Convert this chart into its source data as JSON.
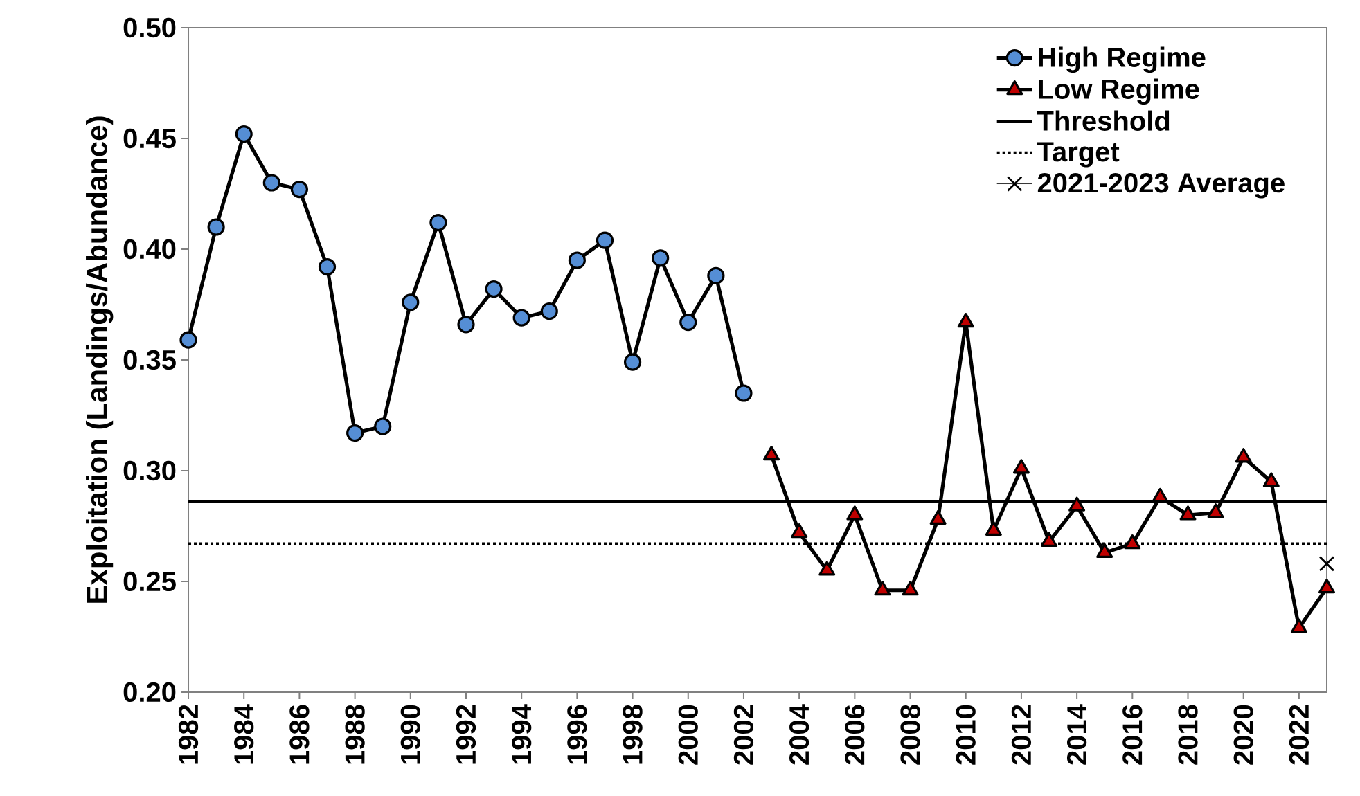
{
  "chart_data": {
    "type": "line",
    "ylabel": "Exploitation (Landings/Abundance)",
    "xlim": [
      1982,
      2023
    ],
    "xticks": [
      1982,
      1984,
      1986,
      1988,
      1990,
      1992,
      1994,
      1996,
      1998,
      2000,
      2002,
      2004,
      2006,
      2008,
      2010,
      2012,
      2014,
      2016,
      2018,
      2020,
      2022
    ],
    "ylim": [
      0.2,
      0.5
    ],
    "yticks": [
      {
        "value": 0.2,
        "label": "0.20"
      },
      {
        "value": 0.25,
        "label": "0.25"
      },
      {
        "value": 0.3,
        "label": "0.30"
      },
      {
        "value": 0.35,
        "label": "0.35"
      },
      {
        "value": 0.4,
        "label": "0.40"
      },
      {
        "value": 0.45,
        "label": "0.45"
      },
      {
        "value": 0.5,
        "label": "0.50"
      }
    ],
    "grid": false,
    "legend": "top right",
    "series": [
      {
        "name": "High Regime",
        "marker": "circle",
        "color": "#558ed5",
        "x": [
          1982,
          1983,
          1984,
          1985,
          1986,
          1987,
          1988,
          1989,
          1990,
          1991,
          1992,
          1993,
          1994,
          1995,
          1996,
          1997,
          1998,
          1999,
          2000,
          2001,
          2002
        ],
        "values": [
          0.359,
          0.41,
          0.452,
          0.43,
          0.427,
          0.392,
          0.317,
          0.32,
          0.376,
          0.412,
          0.366,
          0.382,
          0.369,
          0.372,
          0.395,
          0.404,
          0.349,
          0.396,
          0.367,
          0.388,
          0.335
        ]
      },
      {
        "name": "Low Regime",
        "marker": "triangle",
        "color": "#c00000",
        "x": [
          2003,
          2004,
          2005,
          2006,
          2007,
          2008,
          2009,
          2010,
          2011,
          2012,
          2013,
          2014,
          2015,
          2016,
          2017,
          2018,
          2019,
          2020,
          2021,
          2022,
          2023
        ],
        "values": [
          0.307,
          0.272,
          0.255,
          0.28,
          0.246,
          0.246,
          0.278,
          0.367,
          0.273,
          0.301,
          0.268,
          0.284,
          0.263,
          0.267,
          0.288,
          0.28,
          0.281,
          0.306,
          0.295,
          0.229,
          0.247
        ]
      },
      {
        "name": "2021-2023 Average",
        "type": "scatter",
        "marker": "cross",
        "color": "#000000",
        "x": [
          2023
        ],
        "values": [
          0.258
        ]
      }
    ],
    "ref_lines": [
      {
        "axis": "y",
        "value": 0.286,
        "label": "Threshold",
        "color": "#000000",
        "line_style": "solid"
      },
      {
        "axis": "y",
        "value": 0.267,
        "label": "Target",
        "color": "#000000",
        "line_style": "dotted"
      }
    ]
  }
}
